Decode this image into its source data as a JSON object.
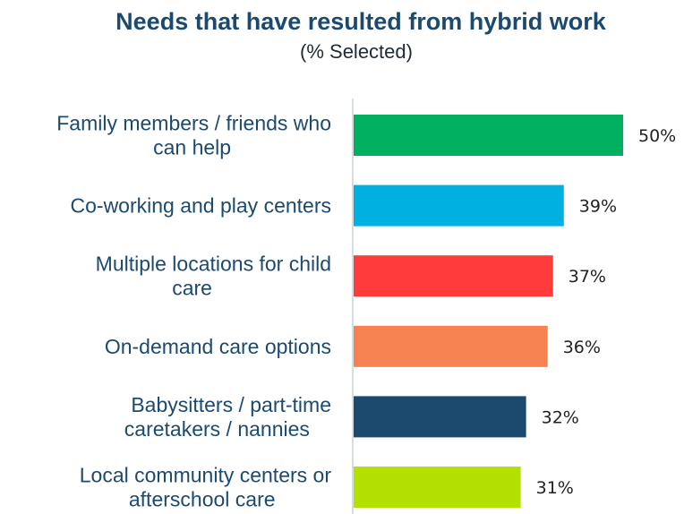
{
  "chart_data": {
    "type": "bar",
    "orientation": "horizontal",
    "title": "Needs that have resulted from hybrid work",
    "subtitle": "(% Selected)",
    "categories": [
      [
        "Family members / friends who",
        "can help"
      ],
      [
        "Co-working and play centers"
      ],
      [
        "Multiple locations for child",
        "care"
      ],
      [
        "On-demand care options"
      ],
      [
        "Babysitters / part-time",
        "caretakers / nannies"
      ],
      [
        "Local community centers or",
        "afterschool care"
      ]
    ],
    "values": [
      50,
      39,
      37,
      36,
      32,
      31
    ],
    "value_labels": [
      "50%",
      "39%",
      "37%",
      "36%",
      "32%",
      "31%"
    ],
    "colors": [
      "#00b060",
      "#00b0e0",
      "#ff3b3b",
      "#f58250",
      "#1c4a6e",
      "#b4e000"
    ],
    "xlim": [
      0,
      50
    ],
    "grid": false,
    "legend": "none"
  }
}
